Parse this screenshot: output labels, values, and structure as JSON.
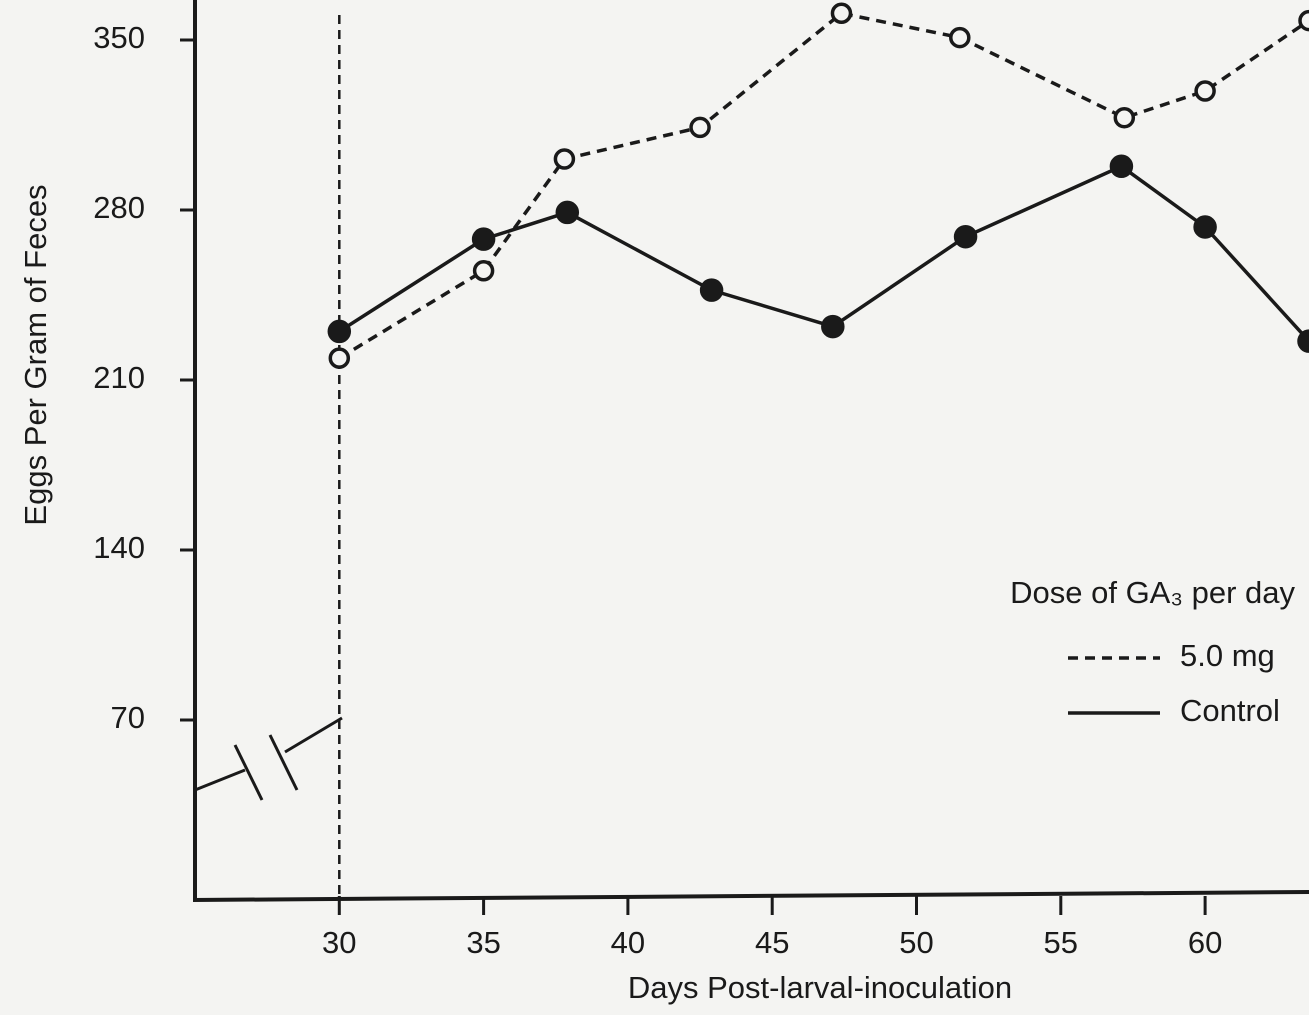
{
  "chart_data": {
    "type": "line",
    "xlabel": "Days Post-larval-inoculation",
    "ylabel": "Eggs Per Gram of Feces",
    "legend_title": "Dose of GA₃ per day",
    "legend_position": "lower right",
    "xlim": [
      25,
      63.6
    ],
    "ylim": [
      0,
      364
    ],
    "xticks": [
      30,
      35,
      40,
      45,
      50,
      55,
      60
    ],
    "yticks": [
      70,
      140,
      210,
      280,
      350
    ],
    "series": [
      {
        "name": "5.0 mg",
        "color": "#1a1a1a",
        "dashed": true,
        "marker": "open",
        "x": [
          30,
          35,
          37.8,
          42.5,
          47.4,
          51.5,
          57.2,
          60,
          63.6
        ],
        "values": [
          219,
          255,
          301,
          314,
          361,
          351,
          318,
          329,
          358
        ]
      },
      {
        "name": "Control",
        "color": "#1a1a1a",
        "dashed": false,
        "marker": "filled",
        "x": [
          30,
          35,
          37.9,
          42.9,
          47.1,
          51.7,
          57.1,
          60,
          63.6
        ],
        "values": [
          230,
          268,
          279,
          247,
          232,
          269,
          298,
          273,
          226
        ]
      }
    ]
  }
}
